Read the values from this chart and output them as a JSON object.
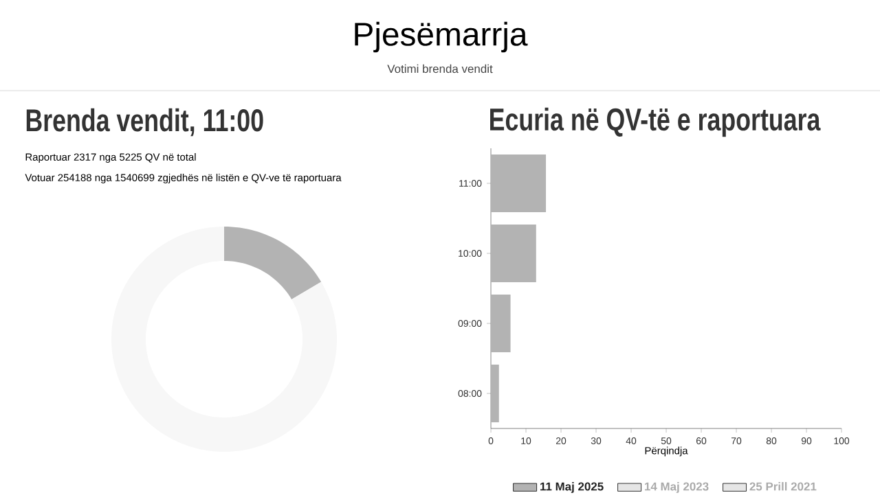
{
  "chart_data": [
    {
      "type": "other",
      "title": "Pjesëmarrja",
      "subtitle": "Votimi brenda vendit"
    },
    {
      "type": "donut",
      "title": "Brenda vendit, 11:00",
      "annotations": [
        "Raportuar 2317 nga 5225 QV në total",
        "Votuar 254188 nga 1540699 zgjedhës në listën e QV-ve të raportuara"
      ],
      "categories": [
        null,
        null
      ],
      "values": [
        16.5,
        83.5
      ],
      "colors": [
        "#b3b3b3",
        "#f7f7f7"
      ]
    },
    {
      "type": "bar",
      "orientation": "horizontal",
      "title": "Ecuria në QV-të e raportuara",
      "xlabel": "Përqindja",
      "categories": [
        "11:00",
        "10:00",
        "09:00",
        "08:00"
      ],
      "xlim": [
        0,
        100
      ],
      "xticks": [
        0,
        10,
        20,
        30,
        40,
        50,
        60,
        70,
        80,
        90,
        100
      ],
      "legend": "bottom",
      "series": [
        {
          "name": "11 Maj 2025",
          "color": "#b3b3b3",
          "values": [
            15.7,
            12.9,
            5.6,
            2.3
          ]
        },
        {
          "name": "14 Maj 2023",
          "color": "#e6e6e6",
          "values": [
            null,
            null,
            null,
            null
          ]
        },
        {
          "name": "25 Prill 2021",
          "color": "#e6e6e6",
          "values": [
            null,
            null,
            null,
            null
          ]
        }
      ]
    }
  ]
}
